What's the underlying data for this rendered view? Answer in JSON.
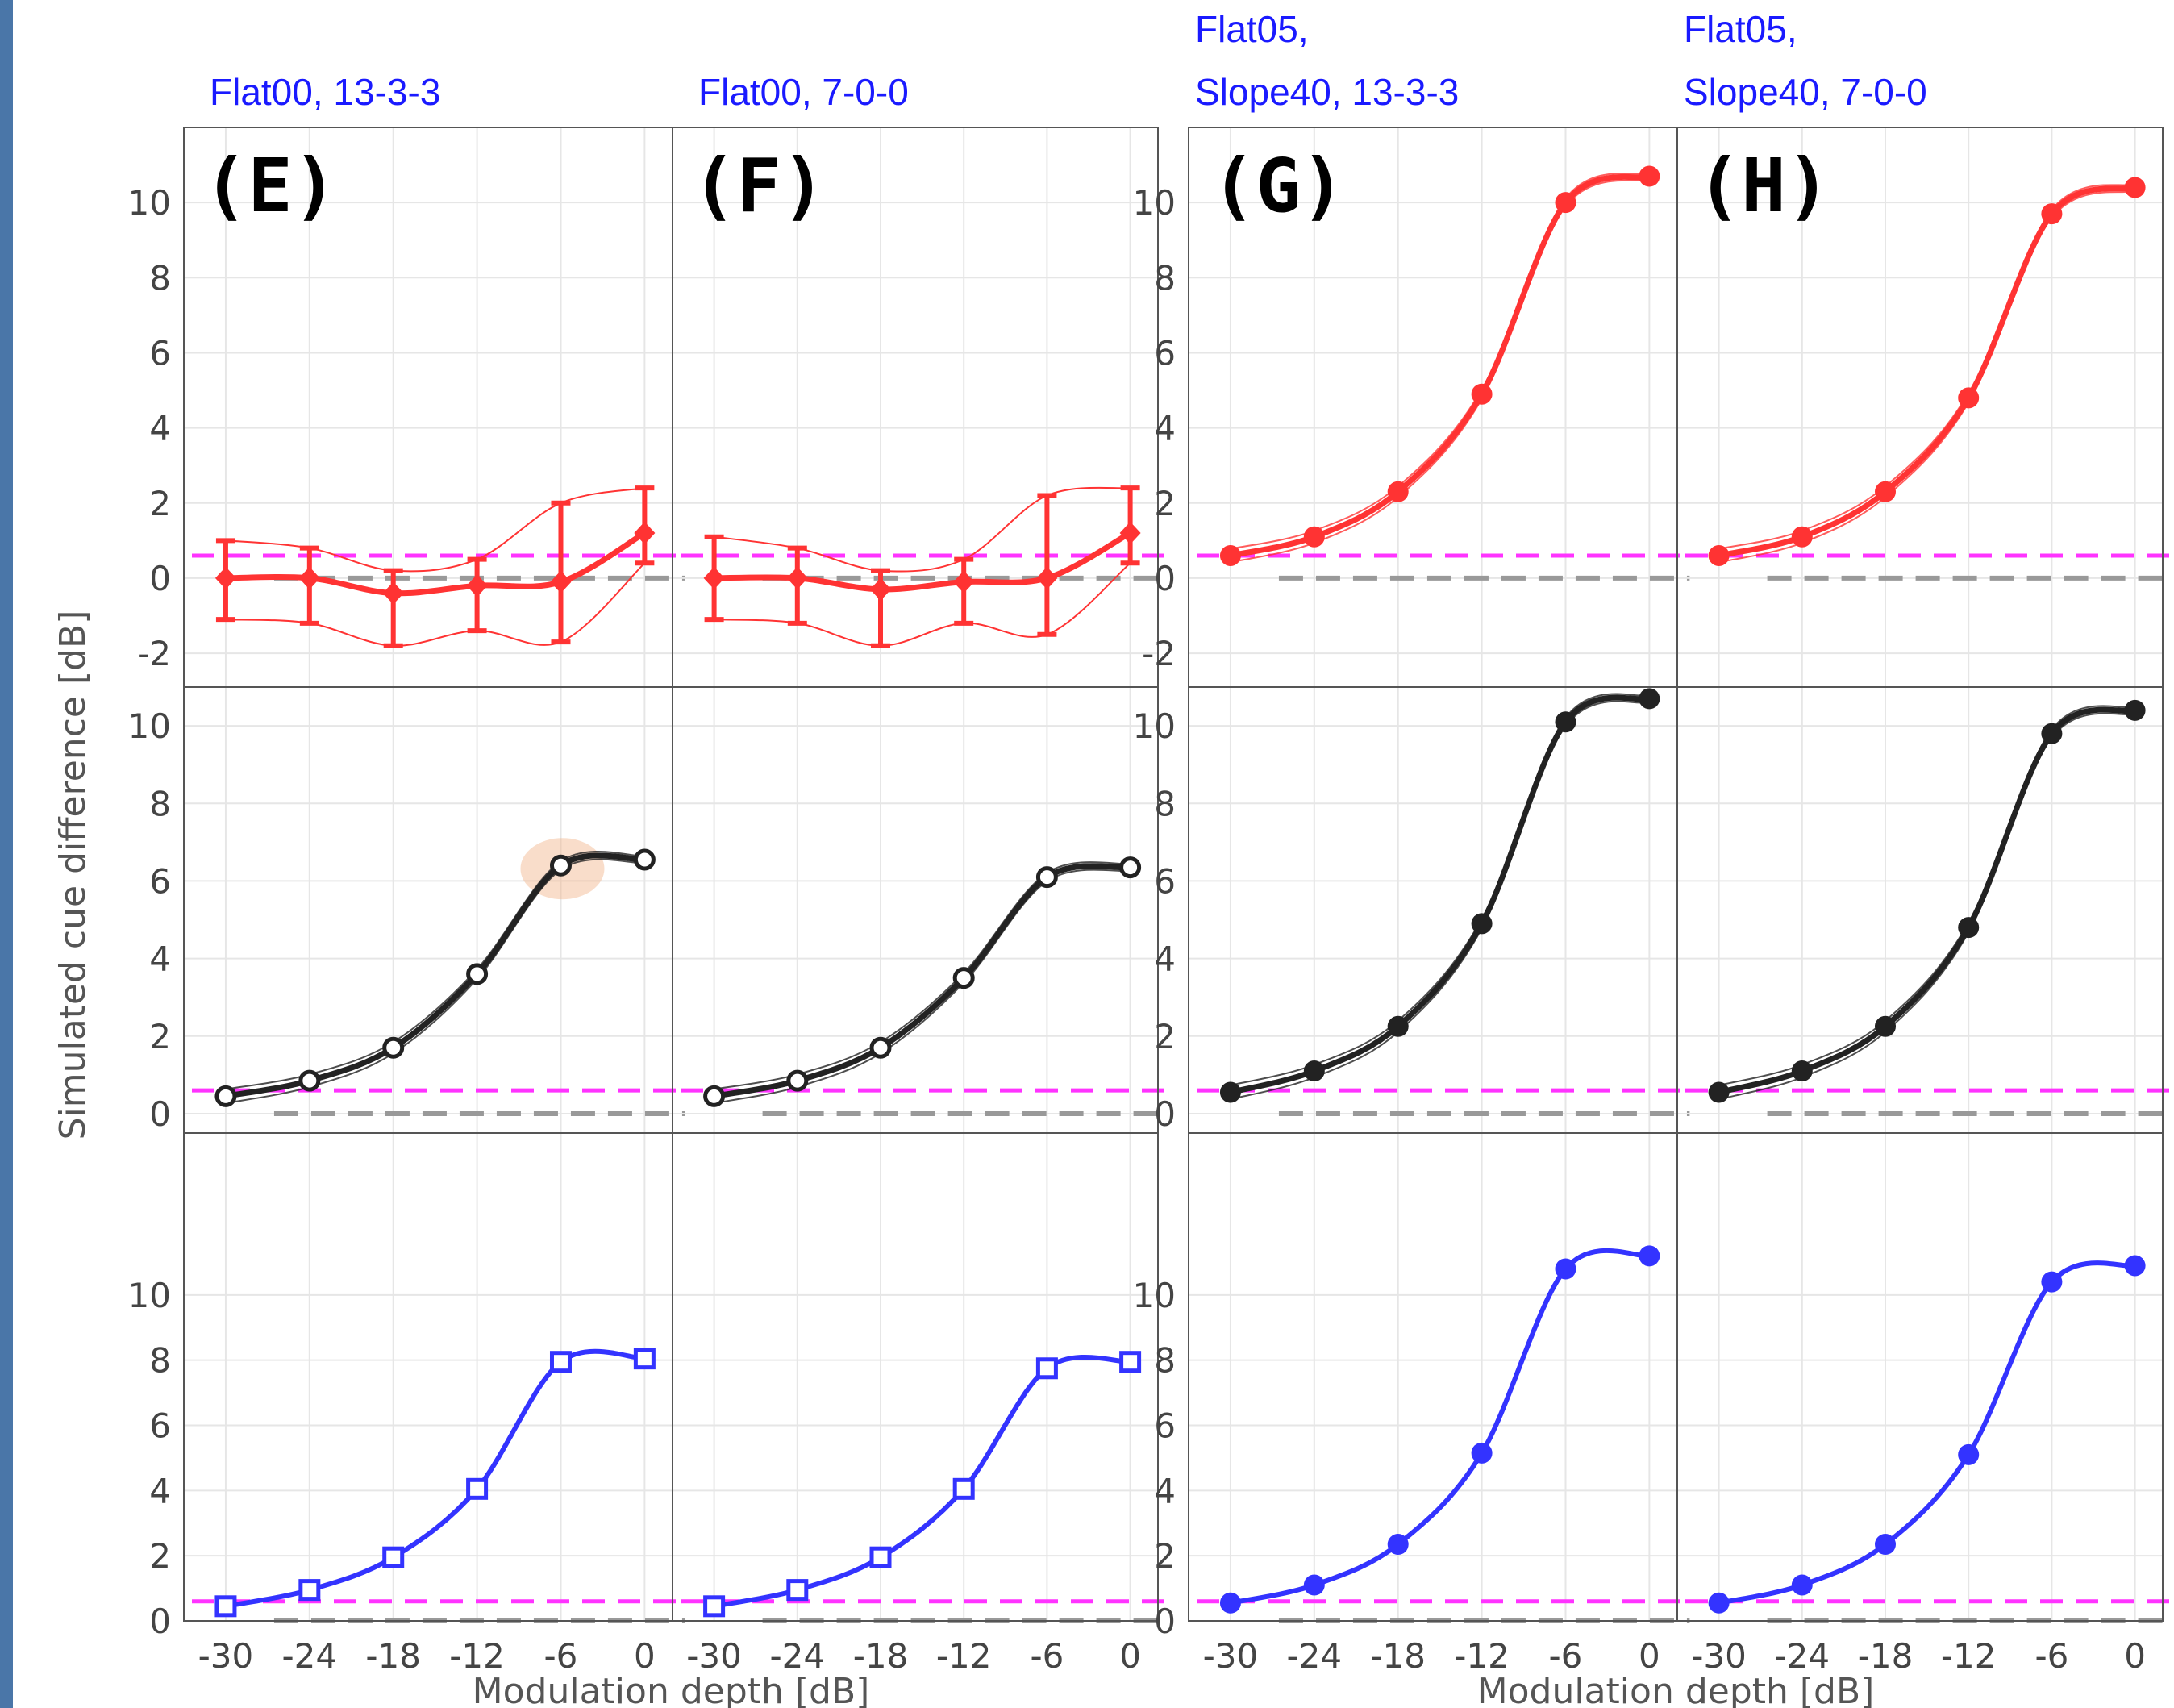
{
  "colors": {
    "red": "#ff3333",
    "black": "#222222",
    "blue": "#3333ff",
    "magenta_ref": "#ff33ff",
    "gray_ref": "#999999",
    "grid": "#e6e6e6",
    "frame": "#555555",
    "highlight": "#f2b48a",
    "left_bar": "#4a76a8"
  },
  "chart_data": {
    "type": "line",
    "xlabel": "Modulation depth [dB]",
    "ylabel": "Simulated cue difference [dB]",
    "x": [
      -30,
      -24,
      -18,
      -12,
      -6,
      0
    ],
    "x_ticks": [
      "-30",
      "-24",
      "-18",
      "-12",
      "-6",
      "0"
    ],
    "xlim": [
      -33,
      2
    ],
    "grid": true,
    "reference_lines": {
      "magenta": 0.6,
      "gray": 0
    },
    "rows": [
      {
        "row": "top",
        "ylim": [
          -2.9,
          12
        ],
        "y_ticks": [
          "-2",
          "0",
          "2",
          "4",
          "6",
          "8",
          "10"
        ],
        "color": "red",
        "marker": "diamond"
      },
      {
        "row": "middle",
        "ylim": [
          -0.5,
          11
        ],
        "y_ticks": [
          "0",
          "2",
          "4",
          "6",
          "8",
          "10"
        ],
        "color": "black",
        "marker": "circle-open"
      },
      {
        "row": "bottom",
        "ylim": [
          0,
          12
        ],
        "y_ticks": [
          "0",
          "2",
          "4",
          "6",
          "8",
          "10"
        ],
        "color": "blue",
        "marker": "square-open"
      }
    ],
    "columns": [
      {
        "title_lines": [
          "Flat00, 13-3-3"
        ],
        "panel_label": "(E)",
        "red": {
          "values": [
            0,
            0,
            -0.4,
            -0.2,
            -0.1,
            1.2
          ],
          "err_low": [
            -1.1,
            -1.2,
            -1.8,
            -1.4,
            -1.7,
            0.4
          ],
          "err_high": [
            1.0,
            0.8,
            0.2,
            0.5,
            2.0,
            2.4
          ]
        },
        "black": {
          "values": [
            0.45,
            0.85,
            1.7,
            3.6,
            6.4,
            6.55
          ]
        },
        "blue": {
          "values": [
            0.45,
            0.95,
            1.95,
            4.05,
            7.95,
            8.05
          ]
        }
      },
      {
        "title_lines": [
          "Flat00, 7-0-0"
        ],
        "panel_label": "(F)",
        "red": {
          "values": [
            0,
            0,
            -0.3,
            -0.1,
            0,
            1.2
          ],
          "err_low": [
            -1.1,
            -1.2,
            -1.8,
            -1.2,
            -1.5,
            0.4
          ],
          "err_high": [
            1.1,
            0.8,
            0.2,
            0.5,
            2.2,
            2.4
          ]
        },
        "black": {
          "values": [
            0.45,
            0.85,
            1.7,
            3.5,
            6.1,
            6.35
          ]
        },
        "blue": {
          "values": [
            0.45,
            0.95,
            1.95,
            4.05,
            7.75,
            7.95
          ]
        }
      },
      {
        "title_lines": [
          "Flat05,",
          "Slope40, 13-3-3"
        ],
        "panel_label": "(G)",
        "red": {
          "values": [
            0.6,
            1.1,
            2.3,
            4.9,
            10.0,
            10.7
          ]
        },
        "black": {
          "values": [
            0.55,
            1.1,
            2.25,
            4.9,
            10.1,
            10.7
          ]
        },
        "blue": {
          "values": [
            0.55,
            1.1,
            2.35,
            5.15,
            10.8,
            11.2
          ]
        }
      },
      {
        "title_lines": [
          "Flat05,",
          "Slope40, 7-0-0"
        ],
        "panel_label": "(H)",
        "red": {
          "values": [
            0.6,
            1.1,
            2.3,
            4.8,
            9.7,
            10.4
          ]
        },
        "black": {
          "values": [
            0.55,
            1.1,
            2.25,
            4.8,
            9.8,
            10.4
          ]
        },
        "blue": {
          "values": [
            0.55,
            1.1,
            2.35,
            5.1,
            10.4,
            10.9
          ]
        }
      }
    ]
  }
}
